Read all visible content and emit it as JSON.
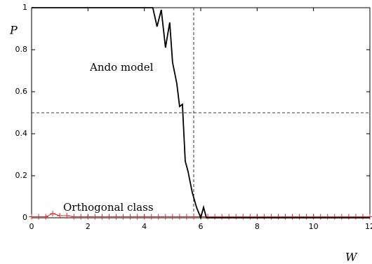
{
  "chart_data": {
    "type": "line",
    "xlabel": "W",
    "ylabel": "P",
    "xlim": [
      0,
      12
    ],
    "ylim": [
      0,
      1
    ],
    "xticks": [
      0,
      2,
      4,
      6,
      8,
      10,
      12
    ],
    "yticks": [
      0,
      0.2,
      0.4,
      0.6,
      0.8,
      1
    ],
    "reference_lines": {
      "y": 0.5,
      "x": 5.75
    },
    "annotations": [
      "Ando model",
      "Orthogonal class"
    ],
    "series": [
      {
        "name": "Orthogonal class",
        "color": "#e0282e",
        "marker": "+",
        "x": [
          0,
          0.25,
          0.5,
          0.75,
          1,
          1.25,
          1.5,
          1.75,
          2,
          2.25,
          2.5,
          2.75,
          3,
          3.25,
          3.5,
          3.75,
          4,
          4.25,
          4.5,
          4.75,
          5,
          5.25,
          5.5,
          5.75,
          6,
          6.25,
          6.5,
          6.75,
          7,
          7.25,
          7.5,
          7.75,
          8,
          8.25,
          8.5,
          8.75,
          9,
          9.25,
          9.5,
          9.75,
          10,
          10.25,
          10.5,
          10.75,
          11,
          11.25,
          11.5,
          11.75,
          12
        ],
        "values": [
          0.005,
          0.005,
          0.005,
          0.02,
          0.01,
          0.01,
          0.005,
          0.005,
          0.005,
          0.005,
          0.005,
          0.005,
          0.005,
          0.005,
          0.005,
          0.005,
          0.005,
          0.005,
          0.005,
          0.005,
          0.005,
          0.005,
          0.005,
          0.005,
          0.005,
          0.005,
          0.005,
          0.005,
          0.005,
          0.005,
          0.005,
          0.005,
          0.005,
          0.005,
          0.005,
          0.005,
          0.005,
          0.005,
          0.005,
          0.005,
          0.005,
          0.005,
          0.005,
          0.005,
          0.005,
          0.005,
          0.005,
          0.005,
          0.005
        ]
      },
      {
        "name": "Ando model",
        "color": "#000000",
        "x": [
          0,
          4.3,
          4.45,
          4.6,
          4.75,
          4.9,
          5.0,
          5.15,
          5.25,
          5.35,
          5.45,
          5.55,
          5.7,
          5.85,
          6.0,
          6.1,
          6.2,
          12
        ],
        "values": [
          1,
          1,
          0.91,
          0.99,
          0.81,
          0.93,
          0.74,
          0.64,
          0.53,
          0.54,
          0.27,
          0.22,
          0.12,
          0.05,
          0.0,
          0.05,
          0.0,
          0
        ]
      }
    ]
  }
}
